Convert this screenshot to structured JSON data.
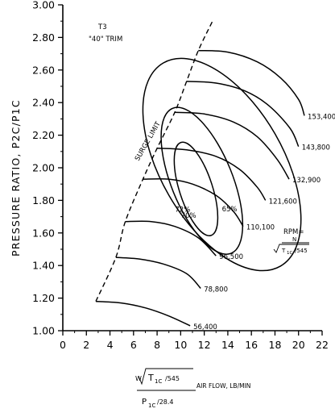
{
  "chart_data": {
    "type": "line",
    "title": "",
    "xlabel": "AIR FLOW, LB/MIN",
    "xlabel_formula": {
      "numerator_prefix": "W",
      "numerator_radicand": "T",
      "numerator_sub": "1C",
      "numerator_divisor": "/545",
      "denominator": "P",
      "denominator_sub": "1C",
      "denominator_divisor": "/28.4"
    },
    "ylabel": "PRESSURE RATIO, P2C/P1C",
    "xlim": [
      0,
      22
    ],
    "ylim": [
      1.0,
      3.0
    ],
    "x_ticks": [
      "0",
      "2",
      "4",
      "6",
      "8",
      "10",
      "12",
      "14",
      "16",
      "18",
      "20",
      "22"
    ],
    "y_ticks": [
      "1.00",
      "1.20",
      "1.40",
      "1.60",
      "1.80",
      "2.00",
      "2.20",
      "2.40",
      "2.60",
      "2.80",
      "3.00"
    ],
    "annotations": {
      "model": "T3",
      "trim": "\"40\" TRIM",
      "surge_limit": "SURGE LIMIT",
      "rpm_label": "RPM=",
      "rpm_n": "N",
      "rpm_radicand": "T",
      "rpm_sub": "1C",
      "rpm_divisor": "/545"
    },
    "speed_lines": [
      {
        "label": "56,400",
        "points": [
          [
            2.8,
            1.18
          ],
          [
            5,
            1.17
          ],
          [
            7,
            1.14
          ],
          [
            9,
            1.09
          ],
          [
            10.8,
            1.03
          ]
        ]
      },
      {
        "label": "78,800",
        "points": [
          [
            4.5,
            1.45
          ],
          [
            6.5,
            1.44
          ],
          [
            8.5,
            1.41
          ],
          [
            10.5,
            1.35
          ],
          [
            11.7,
            1.26
          ]
        ]
      },
      {
        "label": "96,500",
        "points": [
          [
            5.3,
            1.67
          ],
          [
            7.5,
            1.67
          ],
          [
            9.5,
            1.64
          ],
          [
            11.5,
            1.57
          ],
          [
            13,
            1.46
          ]
        ]
      },
      {
        "label": "110,100",
        "points": [
          [
            6.8,
            1.93
          ],
          [
            9,
            1.93
          ],
          [
            11,
            1.9
          ],
          [
            13,
            1.83
          ],
          [
            14.5,
            1.73
          ],
          [
            15.3,
            1.64
          ]
        ]
      },
      {
        "label": "121,600",
        "points": [
          [
            8,
            2.12
          ],
          [
            10.5,
            2.11
          ],
          [
            13,
            2.07
          ],
          [
            15,
            1.99
          ],
          [
            16.5,
            1.88
          ],
          [
            17.2,
            1.8
          ]
        ]
      },
      {
        "label": "132,900",
        "points": [
          [
            9.5,
            2.34
          ],
          [
            12,
            2.33
          ],
          [
            14.5,
            2.28
          ],
          [
            16.5,
            2.19
          ],
          [
            18.2,
            2.05
          ],
          [
            19.2,
            1.93
          ]
        ]
      },
      {
        "label": "143,800",
        "points": [
          [
            10.5,
            2.53
          ],
          [
            13,
            2.52
          ],
          [
            15.5,
            2.47
          ],
          [
            17.5,
            2.38
          ],
          [
            19.3,
            2.24
          ],
          [
            20,
            2.13
          ]
        ]
      },
      {
        "label": "153,400",
        "points": [
          [
            11.5,
            2.72
          ],
          [
            14,
            2.71
          ],
          [
            16.5,
            2.65
          ],
          [
            18.5,
            2.55
          ],
          [
            20,
            2.42
          ],
          [
            20.5,
            2.32
          ]
        ]
      }
    ],
    "surge_limit_line": [
      [
        2.8,
        1.18
      ],
      [
        4.5,
        1.45
      ],
      [
        5.3,
        1.67
      ],
      [
        6.8,
        1.93
      ],
      [
        8,
        2.12
      ],
      [
        9.5,
        2.34
      ],
      [
        10.5,
        2.53
      ],
      [
        11.5,
        2.72
      ],
      [
        12.7,
        2.9
      ]
    ],
    "efficiency_islands": [
      {
        "label": "72%",
        "center": [
          11.3,
          1.87
        ],
        "rx": 1.4,
        "ry": 0.3,
        "tilt_deg": 18
      },
      {
        "label": "70%",
        "center": [
          11.8,
          1.92
        ],
        "rx": 2.6,
        "ry": 0.48,
        "tilt_deg": 22
      },
      {
        "label": "65%",
        "center": [
          13.5,
          2.02
        ],
        "rx": 5.2,
        "ry": 0.72,
        "tilt_deg": 30
      }
    ]
  }
}
